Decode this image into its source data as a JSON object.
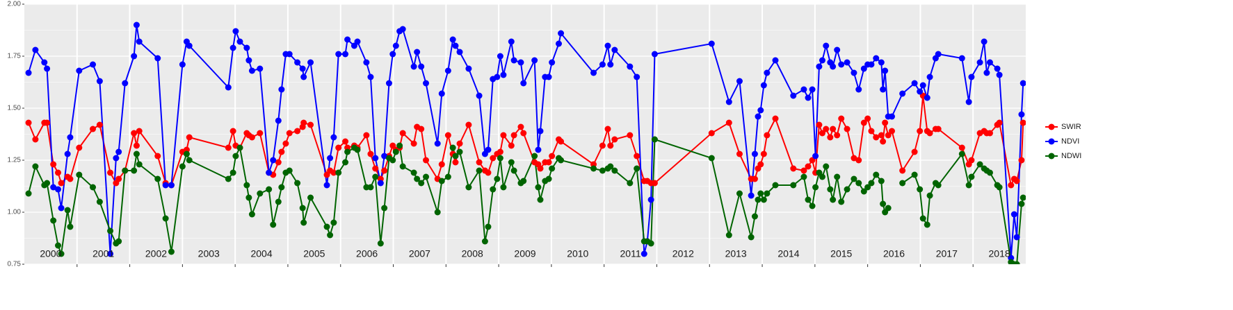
{
  "chart_data": {
    "type": "line",
    "x": [
      2000.08,
      2000.21,
      2000.38,
      2000.43,
      2000.55,
      2000.64,
      2000.7,
      2000.82,
      2000.87,
      2001.04,
      2001.3,
      2001.43,
      2001.63,
      2001.74,
      2001.79,
      2001.91,
      2002.08,
      2002.13,
      2002.18,
      2002.53,
      2002.68,
      2002.79,
      2003.0,
      2003.08,
      2003.13,
      2003.87,
      2003.96,
      2004.01,
      2004.09,
      2004.22,
      2004.26,
      2004.32,
      2004.47,
      2004.64,
      2004.72,
      2004.82,
      2004.88,
      2004.96,
      2005.03,
      2005.18,
      2005.28,
      2005.3,
      2005.43,
      2005.74,
      2005.8,
      2005.87,
      2005.96,
      2006.09,
      2006.13,
      2006.26,
      2006.32,
      2006.49,
      2006.57,
      2006.66,
      2006.76,
      2006.83,
      2006.92,
      2006.99,
      2007.05,
      2007.12,
      2007.18,
      2007.39,
      2007.45,
      2007.53,
      2007.62,
      2007.84,
      2007.92,
      2008.04,
      2008.13,
      2008.18,
      2008.26,
      2008.43,
      2008.63,
      2008.74,
      2008.8,
      2008.89,
      2008.97,
      2009.03,
      2009.09,
      2009.24,
      2009.29,
      2009.42,
      2009.47,
      2009.68,
      2009.75,
      2009.79,
      2009.88,
      2009.95,
      2010.01,
      2010.14,
      2010.18,
      2010.8,
      2010.97,
      2011.07,
      2011.12,
      2011.2,
      2011.49,
      2011.62,
      2011.76,
      2011.82,
      2011.89,
      2011.96,
      2013.04,
      2013.37,
      2013.57,
      2013.79,
      2013.86,
      2013.92,
      2013.97,
      2014.03,
      2014.09,
      2014.25,
      2014.59,
      2014.79,
      2014.87,
      2014.95,
      2015.01,
      2015.08,
      2015.14,
      2015.21,
      2015.29,
      2015.34,
      2015.42,
      2015.5,
      2015.61,
      2015.74,
      2015.83,
      2015.93,
      2016.0,
      2016.07,
      2016.16,
      2016.26,
      2016.29,
      2016.33,
      2016.39,
      2016.46,
      2016.66,
      2016.89,
      2016.99,
      2017.05,
      2017.13,
      2017.18,
      2017.29,
      2017.34,
      2017.79,
      2017.92,
      2017.97,
      2018.13,
      2018.21,
      2018.26,
      2018.32,
      2018.46,
      2018.5,
      2018.72,
      2018.78,
      2018.83,
      2018.92,
      2018.95
    ],
    "series": [
      {
        "name": "SWIR",
        "color": "#ff0000",
        "values": [
          1.43,
          1.35,
          1.43,
          1.43,
          1.23,
          1.19,
          1.14,
          1.17,
          1.16,
          1.31,
          1.4,
          1.42,
          1.19,
          1.14,
          1.16,
          1.2,
          1.38,
          1.32,
          1.39,
          1.27,
          1.14,
          1.13,
          1.29,
          1.3,
          1.36,
          1.31,
          1.39,
          1.32,
          1.31,
          1.38,
          1.37,
          1.36,
          1.38,
          1.19,
          1.18,
          1.24,
          1.29,
          1.33,
          1.38,
          1.39,
          1.41,
          1.43,
          1.42,
          1.18,
          1.2,
          1.19,
          1.31,
          1.34,
          1.31,
          1.32,
          1.31,
          1.37,
          1.28,
          1.21,
          1.16,
          1.2,
          1.27,
          1.32,
          1.3,
          1.31,
          1.38,
          1.33,
          1.41,
          1.4,
          1.25,
          1.16,
          1.23,
          1.37,
          1.28,
          1.24,
          1.33,
          1.42,
          1.24,
          1.2,
          1.19,
          1.26,
          1.28,
          1.29,
          1.37,
          1.32,
          1.37,
          1.41,
          1.38,
          1.24,
          1.23,
          1.21,
          1.24,
          1.24,
          1.27,
          1.35,
          1.34,
          1.23,
          1.32,
          1.4,
          1.32,
          1.35,
          1.37,
          1.27,
          1.15,
          1.15,
          1.14,
          1.14,
          1.38,
          1.43,
          1.28,
          1.16,
          1.16,
          1.21,
          1.23,
          1.28,
          1.37,
          1.45,
          1.21,
          1.2,
          1.22,
          1.25,
          1.19,
          1.42,
          1.38,
          1.4,
          1.36,
          1.4,
          1.37,
          1.45,
          1.4,
          1.26,
          1.25,
          1.43,
          1.45,
          1.39,
          1.36,
          1.37,
          1.34,
          1.43,
          1.37,
          1.39,
          1.2,
          1.29,
          1.39,
          1.56,
          1.39,
          1.38,
          1.4,
          1.4,
          1.31,
          1.23,
          1.25,
          1.38,
          1.39,
          1.38,
          1.38,
          1.42,
          1.43,
          1.13,
          1.16,
          1.15,
          1.25,
          1.43
        ]
      },
      {
        "name": "NDVI",
        "color": "#0000ff",
        "values": [
          1.67,
          1.78,
          1.72,
          1.69,
          1.12,
          1.11,
          1.02,
          1.28,
          1.36,
          1.68,
          1.71,
          1.63,
          0.8,
          1.26,
          1.29,
          1.62,
          1.75,
          1.9,
          1.82,
          1.74,
          1.13,
          1.13,
          1.71,
          1.82,
          1.8,
          1.6,
          1.79,
          1.87,
          1.82,
          1.79,
          1.73,
          1.68,
          1.69,
          1.19,
          1.25,
          1.44,
          1.59,
          1.76,
          1.76,
          1.72,
          1.69,
          1.65,
          1.72,
          1.13,
          1.26,
          1.36,
          1.76,
          1.76,
          1.83,
          1.8,
          1.82,
          1.72,
          1.65,
          1.26,
          1.14,
          1.27,
          1.62,
          1.76,
          1.8,
          1.87,
          1.88,
          1.7,
          1.77,
          1.7,
          1.62,
          1.33,
          1.57,
          1.68,
          1.83,
          1.8,
          1.77,
          1.69,
          1.56,
          1.28,
          1.3,
          1.64,
          1.65,
          1.75,
          1.66,
          1.82,
          1.73,
          1.72,
          1.62,
          1.73,
          1.3,
          1.39,
          1.65,
          1.65,
          1.72,
          1.81,
          1.86,
          1.67,
          1.71,
          1.8,
          1.71,
          1.78,
          1.7,
          1.65,
          0.8,
          0.86,
          1.06,
          1.76,
          1.81,
          1.53,
          1.63,
          1.08,
          1.28,
          1.46,
          1.49,
          1.61,
          1.67,
          1.73,
          1.56,
          1.59,
          1.55,
          1.59,
          1.27,
          1.7,
          1.73,
          1.8,
          1.72,
          1.7,
          1.78,
          1.71,
          1.72,
          1.67,
          1.59,
          1.69,
          1.71,
          1.71,
          1.74,
          1.72,
          1.59,
          1.68,
          1.46,
          1.46,
          1.57,
          1.62,
          1.58,
          1.61,
          1.55,
          1.65,
          1.74,
          1.76,
          1.74,
          1.53,
          1.65,
          1.72,
          1.82,
          1.67,
          1.72,
          1.69,
          1.66,
          0.78,
          0.99,
          0.88,
          1.47,
          1.62
        ]
      },
      {
        "name": "NDWI",
        "color": "#006400",
        "values": [
          1.09,
          1.22,
          1.13,
          1.14,
          0.96,
          0.84,
          0.8,
          1.01,
          0.93,
          1.18,
          1.12,
          1.05,
          0.91,
          0.85,
          0.86,
          1.2,
          1.2,
          1.28,
          1.23,
          1.16,
          0.97,
          0.81,
          1.22,
          1.28,
          1.25,
          1.16,
          1.19,
          1.27,
          1.31,
          1.13,
          1.07,
          0.99,
          1.09,
          1.11,
          0.94,
          1.05,
          1.12,
          1.19,
          1.2,
          1.14,
          1.02,
          0.95,
          1.07,
          0.93,
          0.89,
          0.95,
          1.19,
          1.24,
          1.29,
          1.31,
          1.3,
          1.12,
          1.12,
          1.17,
          0.85,
          1.02,
          1.26,
          1.25,
          1.29,
          1.32,
          1.22,
          1.19,
          1.16,
          1.14,
          1.17,
          1.0,
          1.15,
          1.17,
          1.31,
          1.27,
          1.29,
          1.12,
          1.2,
          0.86,
          0.93,
          1.11,
          1.16,
          1.26,
          1.12,
          1.24,
          1.2,
          1.14,
          1.15,
          1.27,
          1.12,
          1.06,
          1.15,
          1.16,
          1.21,
          1.26,
          1.25,
          1.21,
          1.2,
          1.21,
          1.22,
          1.2,
          1.14,
          1.21,
          0.86,
          0.86,
          0.85,
          1.35,
          1.26,
          0.89,
          1.09,
          0.88,
          0.98,
          1.06,
          1.09,
          1.06,
          1.09,
          1.13,
          1.13,
          1.17,
          1.06,
          1.03,
          1.12,
          1.19,
          1.17,
          1.22,
          1.11,
          1.06,
          1.17,
          1.05,
          1.11,
          1.16,
          1.14,
          1.1,
          1.12,
          1.14,
          1.18,
          1.15,
          1.04,
          1.0,
          1.02,
          null,
          1.14,
          1.18,
          1.11,
          0.97,
          0.94,
          1.08,
          1.14,
          1.13,
          1.28,
          1.13,
          1.17,
          1.23,
          1.21,
          1.2,
          1.19,
          1.13,
          1.12,
          0.76,
          0.75,
          0.75,
          1.04,
          1.07
        ]
      }
    ],
    "xlim": [
      2000,
      2019
    ],
    "xticks": [
      {
        "value": 2000.5,
        "label": "2000"
      },
      {
        "value": 2001.5,
        "label": "2001"
      },
      {
        "value": 2002.5,
        "label": "2002"
      },
      {
        "value": 2003.5,
        "label": "2003"
      },
      {
        "value": 2004.5,
        "label": "2004"
      },
      {
        "value": 2005.5,
        "label": "2005"
      },
      {
        "value": 2006.5,
        "label": "2006"
      },
      {
        "value": 2007.5,
        "label": "2007"
      },
      {
        "value": 2008.5,
        "label": "2008"
      },
      {
        "value": 2009.5,
        "label": "2009"
      },
      {
        "value": 2010.5,
        "label": "2010"
      },
      {
        "value": 2011.5,
        "label": "2011"
      },
      {
        "value": 2012.5,
        "label": "2012"
      },
      {
        "value": 2013.5,
        "label": "2013"
      },
      {
        "value": 2014.5,
        "label": "2014"
      },
      {
        "value": 2015.5,
        "label": "2015"
      },
      {
        "value": 2016.5,
        "label": "2016"
      },
      {
        "value": 2017.5,
        "label": "2017"
      },
      {
        "value": 2018.5,
        "label": "2018"
      }
    ],
    "ylim": [
      0.75,
      2.0
    ],
    "yticks": [
      {
        "value": 0.75,
        "label": "0.75"
      },
      {
        "value": 1.0,
        "label": "1.00"
      },
      {
        "value": 1.25,
        "label": "1.25"
      },
      {
        "value": 1.5,
        "label": "1.50"
      },
      {
        "value": 1.75,
        "label": "1.75"
      },
      {
        "value": 2.0,
        "label": "2.00"
      }
    ],
    "grid": true,
    "legend": "right"
  }
}
